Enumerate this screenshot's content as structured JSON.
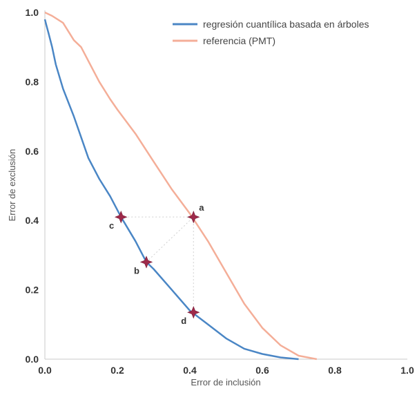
{
  "chart_data": {
    "type": "line",
    "xlabel": "Error de inclusión",
    "ylabel": "Error de exclusión",
    "xlim": [
      0,
      1
    ],
    "ylim": [
      0,
      1
    ],
    "xticks": [
      "0.0",
      "0.2",
      "0.4",
      "0.6",
      "0.8",
      "1.0"
    ],
    "yticks": [
      "0.0",
      "0.2",
      "0.4",
      "0.6",
      "0.8",
      "1.0"
    ],
    "grid": false,
    "legend_position": "top-right",
    "series": [
      {
        "name": "regresión cuantílica basada en árboles",
        "color": "#4a86c5",
        "x": [
          0.0,
          0.005,
          0.01,
          0.02,
          0.03,
          0.05,
          0.08,
          0.1,
          0.12,
          0.15,
          0.18,
          0.21,
          0.25,
          0.28,
          0.3,
          0.35,
          0.4,
          0.45,
          0.5,
          0.55,
          0.6,
          0.65,
          0.7
        ],
        "y": [
          0.98,
          0.96,
          0.94,
          0.9,
          0.85,
          0.78,
          0.7,
          0.64,
          0.58,
          0.52,
          0.47,
          0.41,
          0.34,
          0.28,
          0.26,
          0.2,
          0.14,
          0.1,
          0.06,
          0.03,
          0.015,
          0.005,
          0.0
        ]
      },
      {
        "name": "referencia (PMT)",
        "color": "#f4ae98",
        "x": [
          0.0,
          0.02,
          0.05,
          0.08,
          0.1,
          0.12,
          0.15,
          0.18,
          0.2,
          0.25,
          0.3,
          0.35,
          0.4,
          0.45,
          0.5,
          0.55,
          0.6,
          0.65,
          0.7,
          0.75
        ],
        "y": [
          1.0,
          0.99,
          0.97,
          0.92,
          0.9,
          0.86,
          0.8,
          0.75,
          0.72,
          0.65,
          0.57,
          0.49,
          0.42,
          0.34,
          0.25,
          0.16,
          0.09,
          0.04,
          0.01,
          0.0
        ]
      }
    ],
    "points": [
      {
        "label": "a",
        "x": 0.41,
        "y": 0.41,
        "label_pos": "above-right"
      },
      {
        "label": "b",
        "x": 0.28,
        "y": 0.28,
        "label_pos": "below-left"
      },
      {
        "label": "c",
        "x": 0.21,
        "y": 0.41,
        "label_pos": "below-left"
      },
      {
        "label": "d",
        "x": 0.41,
        "y": 0.135,
        "label_pos": "below-left"
      }
    ],
    "marker_color": "#9e2a4a"
  }
}
